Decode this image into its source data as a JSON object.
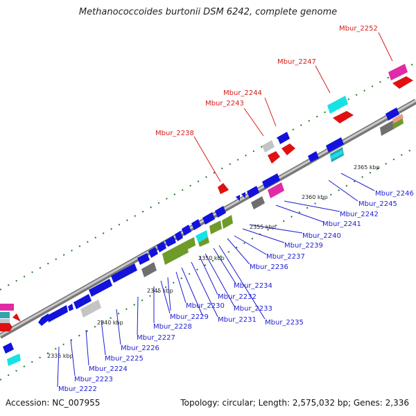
{
  "title": "Methanococcoides burtonii DSM 6242, complete genome",
  "accession": "Accession: NC_007955",
  "summary": "Topology: circular; Length: 2,575,032 bp; Genes: 2,336",
  "colors": {
    "backbone": "#8f8f8f",
    "tick": "#1e7a1e",
    "blue": "#1212dc",
    "red": "#e01010",
    "green": "#6e9a2a",
    "cyan": "#16e2e6",
    "magenta": "#e02aa6",
    "gray": "#6f6f6f",
    "lightgray": "#c4c4c4",
    "teal": "#30a5b0",
    "salmon": "#e89a8a",
    "label_blue": "#1c1cd0",
    "label_red": "#d61a1a"
  },
  "kbp_labels": [
    "2335 kbp",
    "2340 kbp",
    "2345 kbp",
    "2350 kbp",
    "2355 kbp",
    "2360 kbp",
    "2365 kbp"
  ],
  "gene_labels_bottom": [
    "Mbur_2222",
    "Mbur_2223",
    "Mbur_2224",
    "Mbur_2225",
    "Mbur_2226",
    "Mbur_2227",
    "Mbur_2228",
    "Mbur_2229",
    "Mbur_2230",
    "Mbur_2231",
    "Mbur_2232",
    "Mbur_2233",
    "Mbur_2234",
    "Mbur_2235",
    "Mbur_2236",
    "Mbur_2237",
    "Mbur_2239",
    "Mbur_2240",
    "Mbur_2241",
    "Mbur_2242",
    "Mbur_2245",
    "Mbur_2246"
  ],
  "gene_labels_top": [
    "Mbur_2238",
    "Mbur_2243",
    "Mbur_2244",
    "Mbur_2247",
    "Mbur_2252"
  ]
}
